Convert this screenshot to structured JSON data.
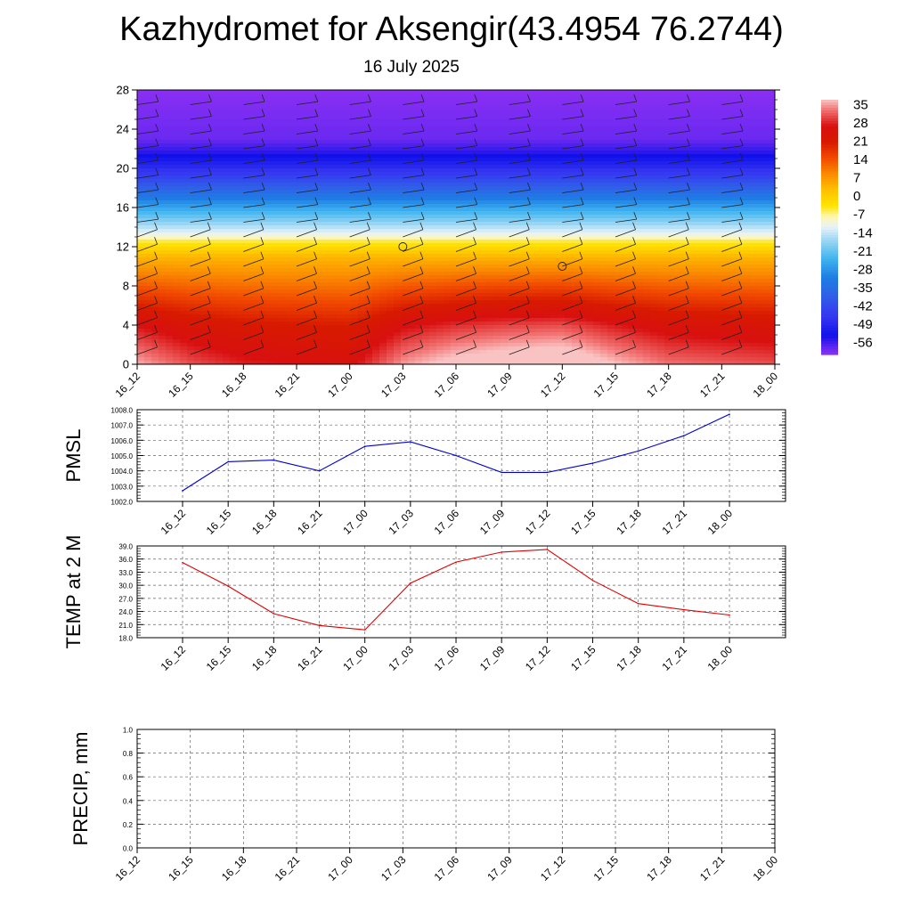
{
  "header": {
    "title": "Kazhydromet for Aksengir(43.4954 76.2744)",
    "date": "16 July 2025"
  },
  "chart_data": [
    {
      "type": "heatmap",
      "title": "",
      "xlabel": "",
      "ylabel": "",
      "x": [
        "16_12",
        "16_15",
        "16_18",
        "16_21",
        "17_00",
        "17_03",
        "17_06",
        "17_09",
        "17_12",
        "17_15",
        "17_18",
        "17_21",
        "18_00"
      ],
      "yticks": [
        0,
        4,
        8,
        12,
        16,
        20,
        24,
        28
      ],
      "ylim": [
        0,
        28
      ],
      "xlim": [
        0,
        12
      ],
      "colorbar": {
        "labels": [
          "35",
          "28",
          "21",
          "14",
          "7",
          "0",
          "-7",
          "-14",
          "-21",
          "-28",
          "-35",
          "-42",
          "-49",
          "-56"
        ],
        "color_stops": [
          {
            "value": 36,
            "color": "#f9c3c3"
          },
          {
            "value": 32,
            "color": "#f07070"
          },
          {
            "value": 26,
            "color": "#d81010"
          },
          {
            "value": 20,
            "color": "#d81a00"
          },
          {
            "value": 14,
            "color": "#f24a00"
          },
          {
            "value": 8,
            "color": "#fb8a00"
          },
          {
            "value": 2,
            "color": "#ffc000"
          },
          {
            "value": -4,
            "color": "#ffe400"
          },
          {
            "value": -8,
            "color": "#fff7b0"
          },
          {
            "value": -12,
            "color": "#e9f2f8"
          },
          {
            "value": -17,
            "color": "#9cd6f3"
          },
          {
            "value": -24,
            "color": "#3fb3ee"
          },
          {
            "value": -31,
            "color": "#1e7ee3"
          },
          {
            "value": -38,
            "color": "#2f5fe7"
          },
          {
            "value": -46,
            "color": "#3535f0"
          },
          {
            "value": -53,
            "color": "#1010ea"
          },
          {
            "value": -57,
            "color": "#5a26f0"
          },
          {
            "value": -60,
            "color": "#8a2ff3"
          }
        ]
      },
      "vertical_profile": [
        {
          "level": 0,
          "value": 32
        },
        {
          "level": 4,
          "value": 24
        },
        {
          "level": 8,
          "value": 12
        },
        {
          "level": 11,
          "value": 3
        },
        {
          "level": 12.5,
          "value": -5
        },
        {
          "level": 13.4,
          "value": -12
        },
        {
          "level": 16,
          "value": -26
        },
        {
          "level": 19,
          "value": -43
        },
        {
          "level": 21.5,
          "value": -54
        },
        {
          "level": 23,
          "value": -58
        },
        {
          "level": 28,
          "value": -60
        }
      ],
      "surface_modulation": [
        3,
        -2,
        -5,
        -6,
        -7,
        2,
        6,
        8,
        9,
        4,
        0,
        -1,
        -2
      ],
      "calm_markers": [
        {
          "x": 5,
          "y": 12
        },
        {
          "x": 8,
          "y": 10
        }
      ]
    },
    {
      "type": "line",
      "title": "",
      "xlabel": "",
      "ylabel": "PMSL",
      "categories": [
        "16_12",
        "16_15",
        "16_18",
        "16_21",
        "17_00",
        "17_03",
        "17_06",
        "17_09",
        "17_12",
        "17_15",
        "17_18",
        "17_21",
        "18_00"
      ],
      "yticks": [
        "1002.0",
        "1003.0",
        "1004.0",
        "1005.0",
        "1006.0",
        "1007.0",
        "1008.0"
      ],
      "ylim": [
        1002,
        1008
      ],
      "series": [
        {
          "color": "#0000cc",
          "values": [
            1002.7,
            1004.6,
            1004.7,
            1004.0,
            1005.6,
            1005.9,
            1005.0,
            1003.9,
            1003.9,
            1004.5,
            1005.3,
            1006.3,
            1007.7
          ]
        }
      ]
    },
    {
      "type": "line",
      "title": "",
      "xlabel": "",
      "ylabel": "TEMP at 2 M",
      "categories": [
        "16_12",
        "16_15",
        "16_18",
        "16_21",
        "17_00",
        "17_03",
        "17_06",
        "17_09",
        "17_12",
        "17_15",
        "17_18",
        "17_21",
        "18_00"
      ],
      "yticks": [
        "18.0",
        "21.0",
        "24.0",
        "27.0",
        "30.0",
        "33.0",
        "36.0",
        "39.0"
      ],
      "ylim": [
        18,
        39
      ],
      "series": [
        {
          "color": "#e00000",
          "values": [
            35.2,
            29.8,
            23.5,
            20.8,
            19.8,
            30.5,
            35.3,
            37.6,
            38.2,
            31.1,
            25.8,
            24.4,
            23.2
          ]
        }
      ]
    },
    {
      "type": "line",
      "title": "",
      "xlabel": "",
      "ylabel": "PRECIP, mm",
      "categories": [
        "16_12",
        "16_15",
        "16_18",
        "16_21",
        "17_00",
        "17_03",
        "17_06",
        "17_09",
        "17_12",
        "17_15",
        "17_18",
        "17_21",
        "18_00"
      ],
      "yticks": [
        "0.0",
        "0.2",
        "0.4",
        "0.6",
        "0.8",
        "1.0"
      ],
      "ylim": [
        0,
        1
      ],
      "series": [
        {
          "color": "#006400",
          "values": [
            0,
            0,
            0,
            0,
            0,
            0,
            0,
            0,
            0,
            0,
            0,
            0,
            0
          ]
        }
      ]
    }
  ]
}
